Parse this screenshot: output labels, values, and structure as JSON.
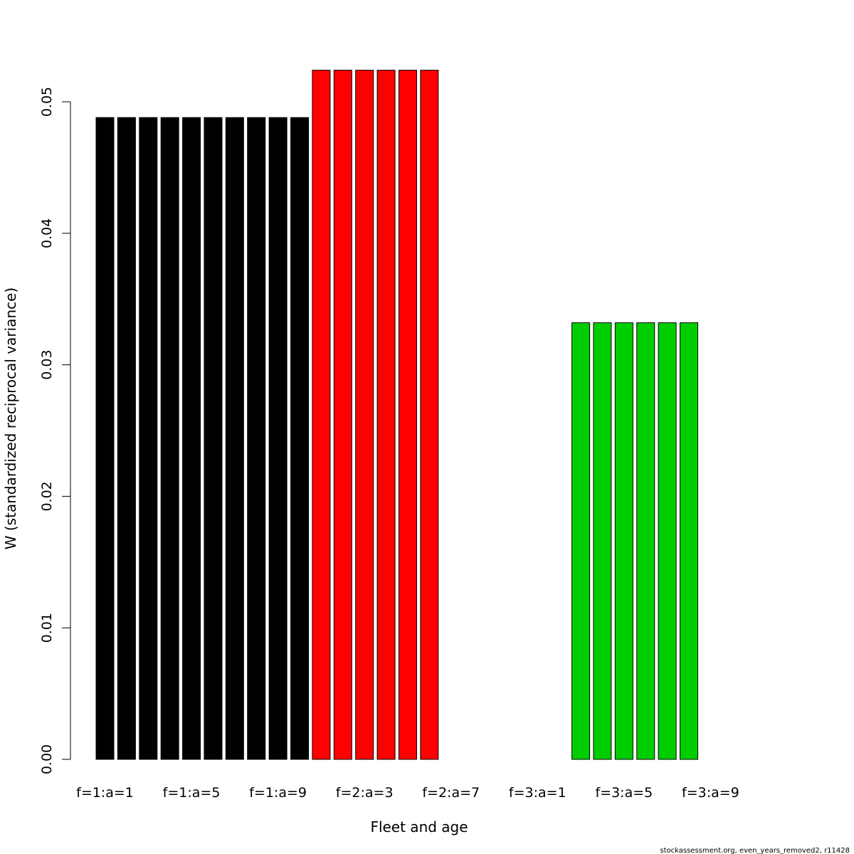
{
  "chart_data": {
    "type": "bar",
    "xlabel": "Fleet and age",
    "ylabel": "W (standardized reciprocal variance)",
    "ylim": [
      0,
      0.05
    ],
    "yticks": [
      "0.00",
      "0.01",
      "0.02",
      "0.03",
      "0.04",
      "0.05"
    ],
    "x_tick_labels": [
      "f=1:a=1",
      "f=1:a=5",
      "f=1:a=9",
      "f=2:a=3",
      "f=2:a=7",
      "f=3:a=1",
      "f=3:a=5",
      "f=3:a=9"
    ],
    "categories": [
      "f=1:a=1",
      "f=1:a=2",
      "f=1:a=3",
      "f=1:a=4",
      "f=1:a=5",
      "f=1:a=6",
      "f=1:a=7",
      "f=1:a=8",
      "f=1:a=9",
      "f=1:a=10",
      "f=2:a=1",
      "f=2:a=2",
      "f=2:a=3",
      "f=2:a=4",
      "f=2:a=5",
      "f=2:a=6",
      "f=2:a=7",
      "f=2:a=8",
      "f=2:a=9",
      "f=2:a=10",
      "f=3:a=1",
      "f=3:a=2",
      "f=3:a=3",
      "f=3:a=4",
      "f=3:a=5",
      "f=3:a=6",
      "f=3:a=7",
      "f=3:a=8",
      "f=3:a=9",
      "f=3:a=10"
    ],
    "values": [
      0.0488,
      0.0488,
      0.0488,
      0.0488,
      0.0488,
      0.0488,
      0.0488,
      0.0488,
      0.0488,
      0.0488,
      0.0524,
      0.0524,
      0.0524,
      0.0524,
      0.0524,
      0.0524,
      0,
      0,
      0,
      0,
      0,
      0,
      0.0332,
      0.0332,
      0.0332,
      0.0332,
      0.0332,
      0.0332,
      0,
      0
    ],
    "bar_colors": [
      "#000000",
      "#000000",
      "#000000",
      "#000000",
      "#000000",
      "#000000",
      "#000000",
      "#000000",
      "#000000",
      "#000000",
      "#ff0000",
      "#ff0000",
      "#ff0000",
      "#ff0000",
      "#ff0000",
      "#ff0000",
      "#ff0000",
      "#ff0000",
      "#ff0000",
      "#ff0000",
      "#00cd00",
      "#00cd00",
      "#00cd00",
      "#00cd00",
      "#00cd00",
      "#00cd00",
      "#00cd00",
      "#00cd00",
      "#00cd00",
      "#00cd00"
    ],
    "grid": false,
    "legend": "none"
  },
  "footer": {
    "note": "stockassessment.org, even_years_removed2, r11428"
  }
}
